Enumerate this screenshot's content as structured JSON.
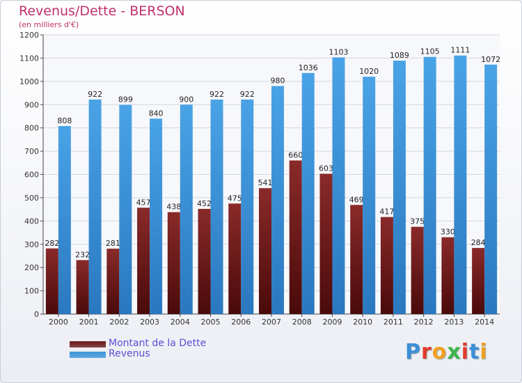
{
  "header": {
    "title": "Revenus/Dette - BERSON",
    "subtitle": "(en milliers d'€)"
  },
  "legend": {
    "items": [
      {
        "label": "Montant de la Dette",
        "color": "#6b1a1a"
      },
      {
        "label": "Revenus",
        "color": "#3d95d8"
      }
    ]
  },
  "logo": {
    "text": "Proxiti",
    "letter_colors": [
      "#3d8fd8",
      "#e23b2e",
      "#f0a020",
      "#3db54a",
      "#e23b2e",
      "#3d8fd8",
      "#f0a020"
    ]
  },
  "chart_data": {
    "type": "bar",
    "title": "Revenus/Dette - BERSON",
    "subtitle": "(en milliers d'€)",
    "categories": [
      "2000",
      "2001",
      "2002",
      "2003",
      "2004",
      "2005",
      "2006",
      "2007",
      "2008",
      "2009",
      "2010",
      "2011",
      "2012",
      "2013",
      "2014"
    ],
    "series": [
      {
        "name": "Montant de la Dette",
        "color": "#6b1a1a",
        "values": [
          282,
          232,
          281,
          457,
          438,
          452,
          475,
          541,
          660,
          603,
          469,
          417,
          375,
          330,
          284
        ]
      },
      {
        "name": "Revenus",
        "color": "#3d95d8",
        "values": [
          808,
          922,
          899,
          840,
          900,
          922,
          922,
          980,
          1036,
          1103,
          1020,
          1089,
          1105,
          1111,
          1072
        ]
      }
    ],
    "ylim": [
      0,
      1200
    ],
    "yticks": [
      0,
      100,
      200,
      300,
      400,
      500,
      600,
      700,
      800,
      900,
      1000,
      1100,
      1200
    ],
    "grid": true,
    "legend_position": "bottom-left"
  }
}
